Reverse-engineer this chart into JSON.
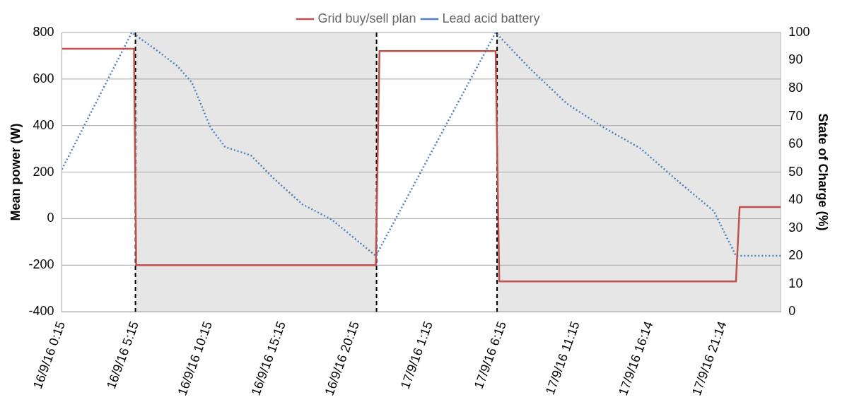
{
  "chart_data": {
    "type": "line",
    "ylabel": "Mean power (W)",
    "y2label": "State of Charge (%)",
    "xlim": [
      "--09-16T00:15",
      "--09-18T01:09"
    ],
    "xticks": [
      {
        "value": "--09-16T00:15",
        "label": "16/9/16 0:15"
      },
      {
        "value": "--09-16T05:15",
        "label": "16/9/16 5:15"
      },
      {
        "value": "--09-16T10:15",
        "label": "16/9/16 10:15"
      },
      {
        "value": "--09-16T15:15",
        "label": "16/9/16 15:15"
      },
      {
        "value": "--09-16T20:15",
        "label": "16/9/16 20:15"
      },
      {
        "value": "--09-17T01:15",
        "label": "17/9/16 1:15"
      },
      {
        "value": "--09-17T06:15",
        "label": "17/9/16 6:15"
      },
      {
        "value": "--09-17T11:15",
        "label": "17/9/16 11:15"
      },
      {
        "value": "--09-17T16:14",
        "label": "17/9/16 16:14"
      },
      {
        "value": "--09-17T21:14",
        "label": "17/9/16 21:14"
      }
    ],
    "ylim": [
      -400,
      800
    ],
    "yticks": [
      -400,
      -200,
      0,
      200,
      400,
      600,
      800
    ],
    "y2lim": [
      0,
      100
    ],
    "y2ticks": [
      0,
      10,
      20,
      30,
      40,
      50,
      60,
      70,
      80,
      90,
      100
    ],
    "grid": "y",
    "legend": "top",
    "series": [
      {
        "name": "Grid buy/sell plan",
        "color": "#c0504d",
        "line_style": "solid",
        "x": [
          "--09-16T00:15",
          "--09-16T05:09",
          "--09-16T05:18",
          "--09-16T21:36",
          "--09-16T21:51",
          "--09-17T05:45",
          "--09-17T06:00",
          "--09-17T22:06",
          "--09-17T22:21",
          "--09-18T01:09"
        ],
        "values": [
          730,
          730,
          -200,
          -200,
          720,
          720,
          -270,
          -270,
          50,
          50
        ]
      },
      {
        "name": "Lead acid battery",
        "color": "#4f81bd",
        "line_style": "dotted",
        "axis": "y2",
        "x": [
          "--09-16T00:15",
          "--09-16T05:00",
          "--09-16T06:36",
          "--09-16T08:06",
          "--09-16T09:06",
          "--09-16T10:21",
          "--09-16T11:21",
          "--09-16T13:06",
          "--09-16T14:36",
          "--09-16T16:36",
          "--09-16T18:36",
          "--09-16T20:06",
          "--09-16T21:36",
          "--09-17T05:45",
          "--09-17T08:06",
          "--09-17T10:36",
          "--09-17T13:06",
          "--09-17T15:36",
          "--09-17T18:06",
          "--09-17T20:36",
          "--09-17T22:06",
          "--09-18T01:09"
        ],
        "values": [
          51,
          100,
          94,
          88,
          82,
          66,
          59,
          56,
          48,
          38.5,
          33,
          26.5,
          20,
          100,
          87,
          74.5,
          66,
          58.5,
          47,
          36,
          20,
          20
        ]
      }
    ],
    "bands": [
      {
        "axis": "x",
        "from": "--09-16T05:15",
        "to": "--09-16T21:39",
        "color": "#e6e6e6"
      },
      {
        "axis": "x",
        "from": "--09-17T05:51",
        "to": "--09-18T01:09",
        "color": "#e6e6e6"
      }
    ],
    "ref_lines": [
      {
        "axis": "x",
        "value": "--09-16T05:15",
        "color": "#000000",
        "line_style": "dashed"
      },
      {
        "axis": "x",
        "value": "--09-16T21:39",
        "color": "#000000",
        "line_style": "dashed"
      },
      {
        "axis": "x",
        "value": "--09-17T05:51",
        "color": "#000000",
        "line_style": "dashed"
      }
    ]
  }
}
